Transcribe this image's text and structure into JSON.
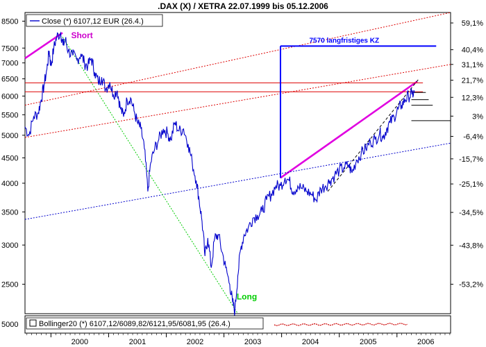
{
  "chart_data": [
    {
      "type": "line",
      "title": ".DAX (X) / XETRA 22.07.1999 bis 05.12.2006",
      "x_ticks": [
        "2000",
        "2001",
        "2002",
        "2003",
        "2004",
        "2005",
        "2006"
      ],
      "x_range": [
        1999.55,
        2006.93
      ],
      "y_log_scale": true,
      "y_range": [
        2180,
        8850
      ],
      "y_ticks_left": [
        "2500",
        "3000",
        "3500",
        "4000",
        "4500",
        "5000",
        "5500",
        "6000",
        "6500",
        "7000",
        "7500",
        "8500"
      ],
      "y_ticks_right": [
        {
          "label": "59,1%",
          "value": 8430
        },
        {
          "label": "40,4%",
          "value": 7443
        },
        {
          "label": "31,1%",
          "value": 6951
        },
        {
          "label": "21,7%",
          "value": 6459
        },
        {
          "label": "12,3%",
          "value": 5964
        },
        {
          "label": "3%",
          "value": 5465
        },
        {
          "label": "-6,4%",
          "value": 4974
        },
        {
          "label": "-15,7%",
          "value": 4480
        },
        {
          "label": "-25,1%",
          "value": 3986
        },
        {
          "label": "-34,5%",
          "value": 3492
        },
        {
          "label": "-43,8%",
          "value": 2998
        },
        {
          "label": "-53,2%",
          "value": 2500
        }
      ],
      "grid": false,
      "legend": {
        "position": "top-left",
        "text": "Close (*) 6107,12 EUR (26.4.)"
      },
      "series": [
        {
          "name": "Close (*) 6107,12 EUR (26.4.)",
          "color": "#0000cc",
          "points": [
            [
              1999.55,
              5200
            ],
            [
              1999.62,
              5000
            ],
            [
              1999.7,
              5450
            ],
            [
              1999.78,
              5550
            ],
            [
              1999.83,
              5900
            ],
            [
              1999.88,
              6300
            ],
            [
              1999.93,
              6800
            ],
            [
              1999.97,
              7400
            ],
            [
              2000.0,
              6900
            ],
            [
              2000.05,
              7500
            ],
            [
              2000.1,
              7900
            ],
            [
              2000.17,
              8050
            ],
            [
              2000.21,
              7600
            ],
            [
              2000.25,
              7800
            ],
            [
              2000.3,
              7400
            ],
            [
              2000.38,
              7250
            ],
            [
              2000.45,
              7100
            ],
            [
              2000.52,
              7300
            ],
            [
              2000.58,
              7000
            ],
            [
              2000.64,
              6900
            ],
            [
              2000.7,
              7150
            ],
            [
              2000.76,
              6700
            ],
            [
              2000.82,
              6400
            ],
            [
              2000.88,
              6550
            ],
            [
              2000.95,
              6200
            ],
            [
              2001.02,
              6400
            ],
            [
              2001.08,
              6050
            ],
            [
              2001.15,
              6150
            ],
            [
              2001.2,
              5700
            ],
            [
              2001.26,
              5450
            ],
            [
              2001.32,
              5900
            ],
            [
              2001.38,
              5950
            ],
            [
              2001.44,
              5600
            ],
            [
              2001.5,
              5300
            ],
            [
              2001.56,
              5150
            ],
            [
              2001.62,
              4700
            ],
            [
              2001.68,
              3850
            ],
            [
              2001.73,
              4400
            ],
            [
              2001.8,
              4700
            ],
            [
              2001.87,
              4900
            ],
            [
              2001.95,
              5150
            ],
            [
              2002.02,
              5050
            ],
            [
              2002.08,
              4900
            ],
            [
              2002.15,
              5300
            ],
            [
              2002.22,
              5100
            ],
            [
              2002.3,
              5150
            ],
            [
              2002.38,
              4800
            ],
            [
              2002.45,
              4400
            ],
            [
              2002.52,
              4050
            ],
            [
              2002.57,
              3700
            ],
            [
              2002.62,
              3350
            ],
            [
              2002.67,
              2850
            ],
            [
              2002.72,
              3100
            ],
            [
              2002.78,
              2700
            ],
            [
              2002.84,
              3100
            ],
            [
              2002.9,
              3150
            ],
            [
              2002.97,
              2900
            ],
            [
              2003.03,
              2700
            ],
            [
              2003.1,
              2500
            ],
            [
              2003.15,
              2300
            ],
            [
              2003.19,
              2200
            ],
            [
              2003.24,
              2600
            ],
            [
              2003.29,
              2950
            ],
            [
              2003.35,
              3150
            ],
            [
              2003.42,
              3250
            ],
            [
              2003.5,
              3400
            ],
            [
              2003.58,
              3450
            ],
            [
              2003.66,
              3500
            ],
            [
              2003.74,
              3700
            ],
            [
              2003.82,
              3800
            ],
            [
              2003.9,
              3950
            ],
            [
              2003.98,
              3950
            ],
            [
              2004.06,
              4100
            ],
            [
              2004.13,
              4050
            ],
            [
              2004.2,
              3850
            ],
            [
              2004.28,
              3950
            ],
            [
              2004.36,
              3900
            ],
            [
              2004.44,
              3850
            ],
            [
              2004.52,
              3800
            ],
            [
              2004.6,
              3700
            ],
            [
              2004.68,
              3900
            ],
            [
              2004.76,
              3950
            ],
            [
              2004.84,
              4050
            ],
            [
              2004.92,
              4150
            ],
            [
              2005.0,
              4250
            ],
            [
              2005.08,
              4300
            ],
            [
              2005.16,
              4350
            ],
            [
              2005.22,
              4200
            ],
            [
              2005.3,
              4450
            ],
            [
              2005.38,
              4600
            ],
            [
              2005.46,
              4700
            ],
            [
              2005.54,
              4850
            ],
            [
              2005.62,
              4900
            ],
            [
              2005.7,
              5050
            ],
            [
              2005.76,
              4950
            ],
            [
              2005.82,
              5150
            ],
            [
              2005.88,
              5300
            ],
            [
              2005.95,
              5450
            ],
            [
              2006.02,
              5650
            ],
            [
              2006.08,
              5750
            ],
            [
              2006.14,
              5900
            ],
            [
              2006.2,
              6000
            ],
            [
              2006.26,
              6050
            ],
            [
              2006.31,
              6107
            ]
          ]
        }
      ],
      "annotations": [
        {
          "text": "Short",
          "color": "#cc00cc"
        },
        {
          "text": "Long",
          "color": "#00cc00"
        },
        {
          "text": "7570 langfristiges KZ",
          "color": "#0000ff",
          "value": 7570
        }
      ],
      "trendlines": [
        {
          "name": "short-trend",
          "color": "#e000e0",
          "style": "solid",
          "from": [
            1999.55,
            7150
          ],
          "to": [
            2000.2,
            8050
          ]
        },
        {
          "name": "long-term-trend",
          "color": "#e000e0",
          "style": "solid",
          "from": [
            2003.98,
            4100
          ],
          "to": [
            2006.35,
            6420
          ]
        },
        {
          "name": "red-dotted-upper",
          "color": "#dd0000",
          "style": "dotted",
          "from": [
            1999.55,
            5750
          ],
          "to": [
            2006.93,
            8850
          ]
        },
        {
          "name": "red-dotted-lower",
          "color": "#dd0000",
          "style": "dotted",
          "from": [
            1999.55,
            4950
          ],
          "to": [
            2006.93,
            6950
          ]
        },
        {
          "name": "blue-dotted-support",
          "color": "#0000cc",
          "style": "dotted",
          "from": [
            1999.55,
            3380
          ],
          "to": [
            2006.93,
            4820
          ]
        },
        {
          "name": "green-dotted-long",
          "color": "#00cc00",
          "style": "dotted",
          "from": [
            2000.2,
            7900
          ],
          "to": [
            2003.23,
            2190
          ]
        },
        {
          "name": "black-dashed-channel",
          "color": "#000000",
          "style": "dashed",
          "from": [
            2004.8,
            3850
          ],
          "to": [
            2006.38,
            6500
          ]
        }
      ],
      "horizontal_levels": [
        {
          "name": "resistance-upper",
          "color": "#dd0000",
          "value": 6380
        },
        {
          "name": "resistance-lower",
          "color": "#dd0000",
          "value": 6120
        }
      ],
      "target": {
        "label": "7570 langfristiges KZ",
        "value": 7570,
        "from_x": 2003.98,
        "to_x": 2006.68,
        "base_value": 4100
      }
    },
    {
      "type": "line",
      "legend": {
        "position": "top-left",
        "text": "Bollinger20 (*) 6107,12/6089,82/6121,95/6081,95 (26.4.)"
      },
      "y_ticks_left": [
        "5000"
      ],
      "series": [
        {
          "name": "Bollinger20 (*) 6107,12/6089,82/6121,95/6081,95 (26.4.)",
          "color": "#cc0000"
        }
      ]
    }
  ]
}
